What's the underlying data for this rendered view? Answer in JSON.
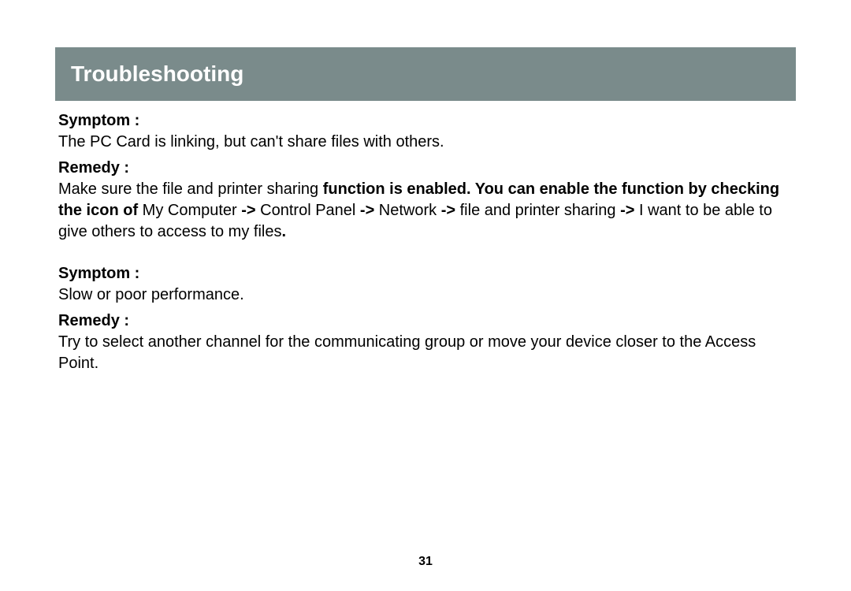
{
  "header": {
    "title": "Troubleshooting"
  },
  "sections": {
    "s1": {
      "symptom_label": "Symptom :",
      "symptom_text": "The PC Card is linking, but can't share files with others.",
      "remedy_label": "Remedy :",
      "remedy_pre": "Make sure the file and printer sharing ",
      "remedy_bold1": "function is enabled. You can enable the function by checking the icon of ",
      "remedy_mid1": "My Computer ",
      "remedy_arrow1": "->",
      "remedy_mid2": " Control Panel ",
      "remedy_arrow2": "->",
      "remedy_mid3": " Network ",
      "remedy_arrow3": "->",
      "remedy_mid4": " file and printer sharing ",
      "remedy_arrow4": "->",
      "remedy_end": " I want to be able to give others to access to my files",
      "remedy_period": "."
    },
    "s2": {
      "symptom_label": "Symptom :",
      "symptom_text": "Slow or poor performance.",
      "remedy_label": "Remedy :",
      "remedy_text": "Try to select another channel for the communicating group or move your device closer to the Access Point."
    }
  },
  "page_number": "31",
  "colors": {
    "header_bg": "#7a8b8b",
    "header_text": "#ffffff",
    "body_text": "#000000",
    "page_bg": "#ffffff"
  }
}
